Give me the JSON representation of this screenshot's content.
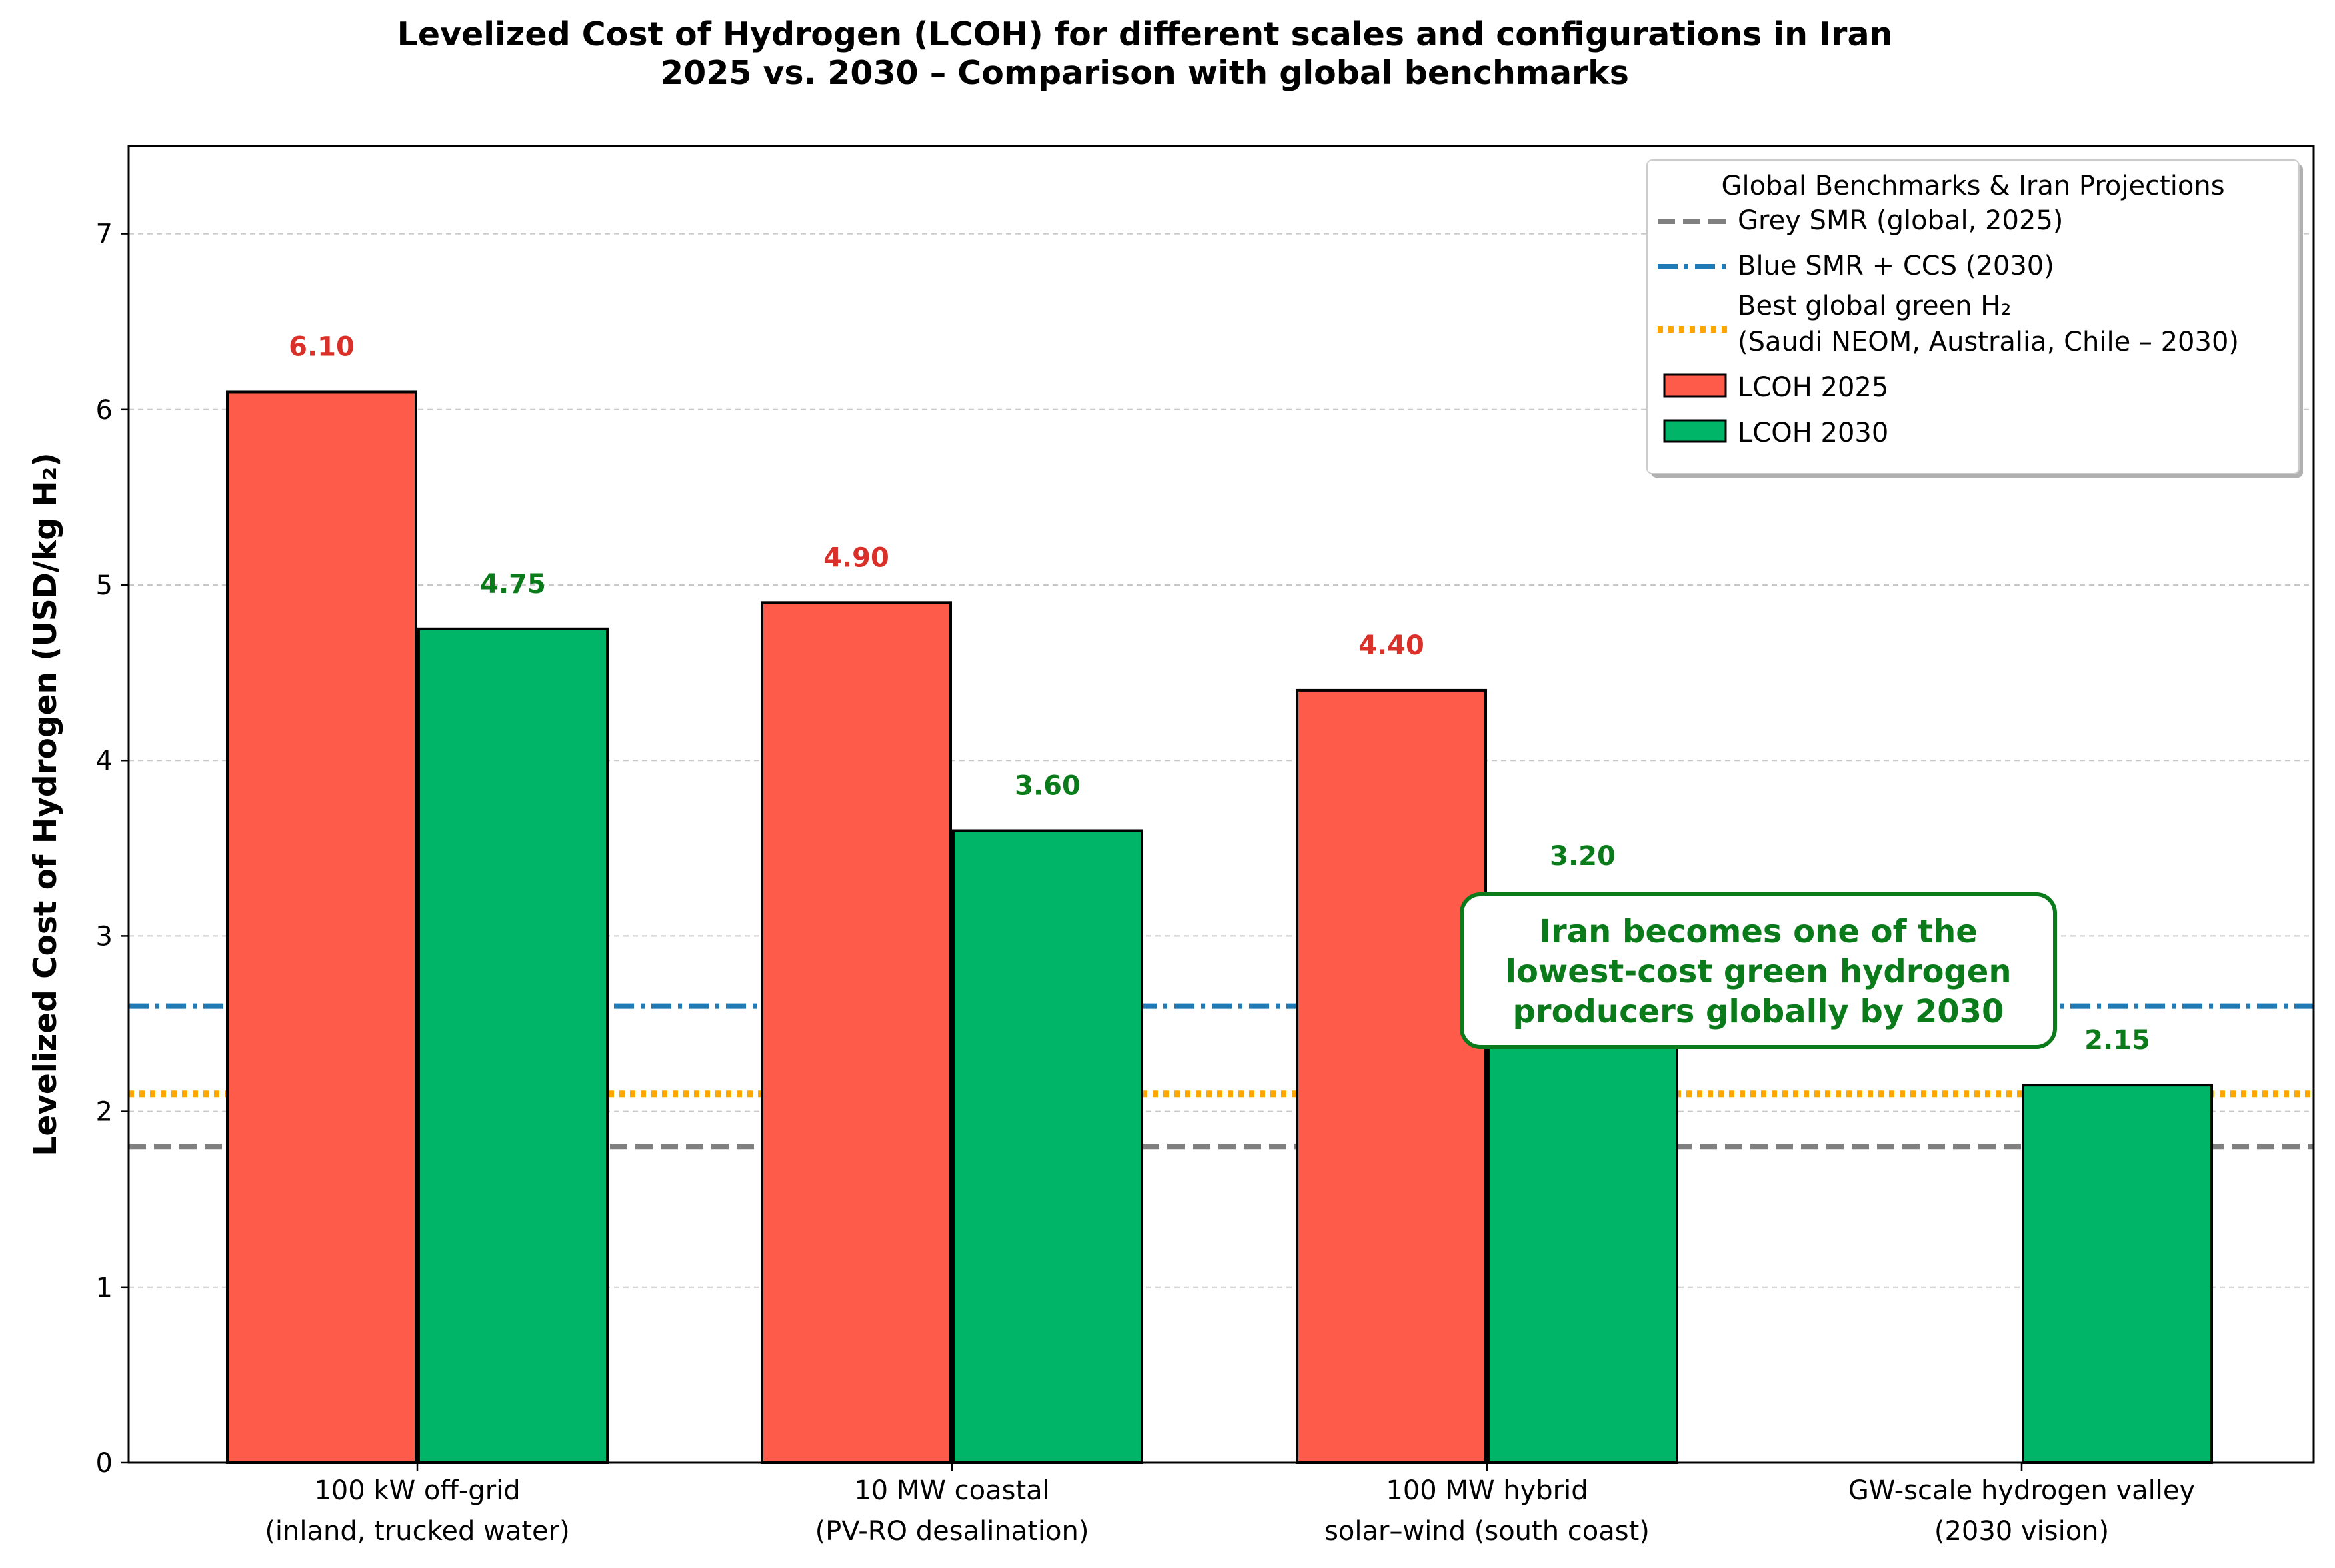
{
  "chart_data": {
    "type": "bar",
    "title_lines": [
      "Levelized Cost of Hydrogen (LCOH) for different scales and configurations in Iran",
      "2025 vs. 2030 – Comparison with global benchmarks"
    ],
    "xlabel": "",
    "ylabel": "Levelized Cost of Hydrogen (USD/kg H₂)",
    "ylim": [
      0,
      7.5
    ],
    "yticks": [
      0,
      1,
      2,
      3,
      4,
      5,
      6,
      7
    ],
    "grid": "y-dashed",
    "categories": [
      [
        "100 kW off-grid",
        "(inland, trucked water)"
      ],
      [
        "10 MW coastal",
        "(PV-RO desalination)"
      ],
      [
        "100 MW hybrid",
        "solar–wind (south coast)"
      ],
      [
        "GW-scale hydrogen valley",
        "(2030 vision)"
      ]
    ],
    "series": [
      {
        "name": "LCOH 2025",
        "color": "#ff5b4a",
        "label_color": "#d9302a",
        "values": [
          6.1,
          4.9,
          4.4,
          0
        ]
      },
      {
        "name": "LCOH 2030",
        "color": "#00b468",
        "label_color": "#0a7a1a",
        "values": [
          4.75,
          3.6,
          3.2,
          2.15
        ]
      }
    ],
    "value_labels": [
      [
        "6.10",
        "4.90",
        "4.40",
        null
      ],
      [
        "4.75",
        "3.60",
        "3.20",
        "2.15"
      ]
    ],
    "reference_lines": [
      {
        "name": "Grey SMR (global, 2025)",
        "value": 1.8,
        "color": "#808080",
        "style": "dashed"
      },
      {
        "name": "Blue SMR + CCS (2030)",
        "value": 2.6,
        "color": "#1f7ab5",
        "style": "dashdot"
      },
      {
        "name": "Best global green H₂\n(Saudi NEOM, Australia, Chile – 2030)",
        "value": 2.1,
        "color": "#ffa500",
        "style": "dotted"
      }
    ],
    "legend": {
      "title": "Global Benchmarks & Iran Projections",
      "placement": "top-right",
      "entries": [
        [
          "Grey SMR (global, 2025)"
        ],
        [
          "Blue SMR + CCS (2030)"
        ],
        [
          "Best global green H₂",
          "(Saudi NEOM, Australia, Chile – 2030)"
        ],
        [
          "LCOH 2025"
        ],
        [
          "LCOH 2030"
        ]
      ]
    },
    "annotation": {
      "lines": [
        "Iran becomes one of the",
        "lowest-cost green hydrogen",
        "producers globally by 2030"
      ],
      "color": "#0a7a1a",
      "anchor_category": 2
    }
  }
}
